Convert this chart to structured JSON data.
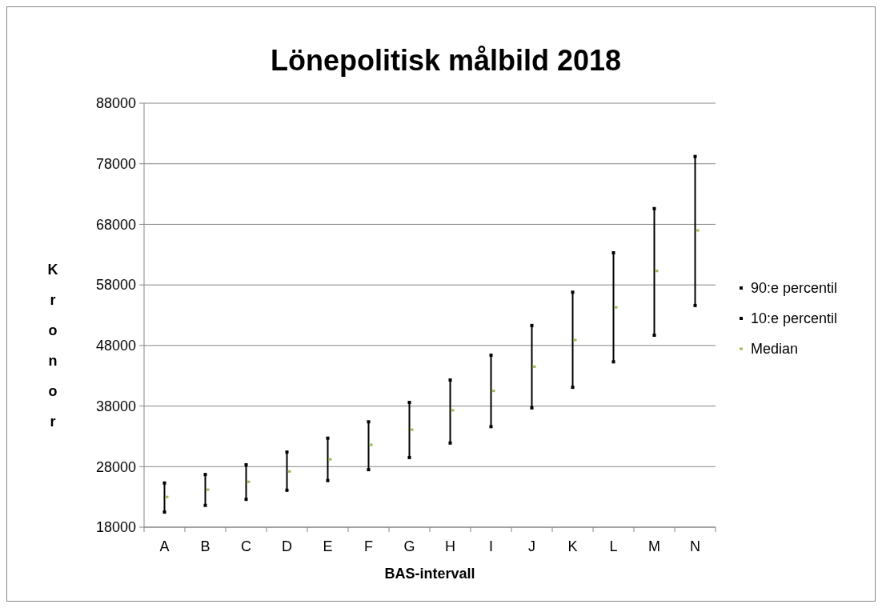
{
  "chart_data": {
    "type": "scatter",
    "title": "Lönepolitisk målbild 2018",
    "xlabel": "BAS-intervall",
    "ylabel": "Kronor",
    "categories": [
      "A",
      "B",
      "C",
      "D",
      "E",
      "F",
      "G",
      "H",
      "I",
      "J",
      "K",
      "L",
      "M",
      "N"
    ],
    "ylim": [
      18000,
      88000
    ],
    "yticks": [
      18000,
      28000,
      38000,
      48000,
      58000,
      68000,
      78000,
      88000
    ],
    "grid": "y",
    "legend": "right",
    "series": [
      {
        "name": "90:e percentil",
        "color": "#000000",
        "marker": "square",
        "values": [
          25300,
          26700,
          28300,
          30400,
          32700,
          35400,
          38600,
          42300,
          46400,
          51300,
          56800,
          63300,
          70600,
          79200
        ]
      },
      {
        "name": "10:e percentil",
        "color": "#000000",
        "marker": "square",
        "values": [
          20500,
          21600,
          22600,
          24100,
          25700,
          27500,
          29500,
          31900,
          34600,
          37700,
          41100,
          45300,
          49700,
          54600
        ]
      },
      {
        "name": "Median",
        "color": "#9bbb59",
        "marker": "square",
        "values": [
          23000,
          24200,
          25500,
          27200,
          29200,
          31600,
          34100,
          37300,
          40500,
          44500,
          48900,
          54300,
          60300,
          67000
        ]
      }
    ]
  }
}
